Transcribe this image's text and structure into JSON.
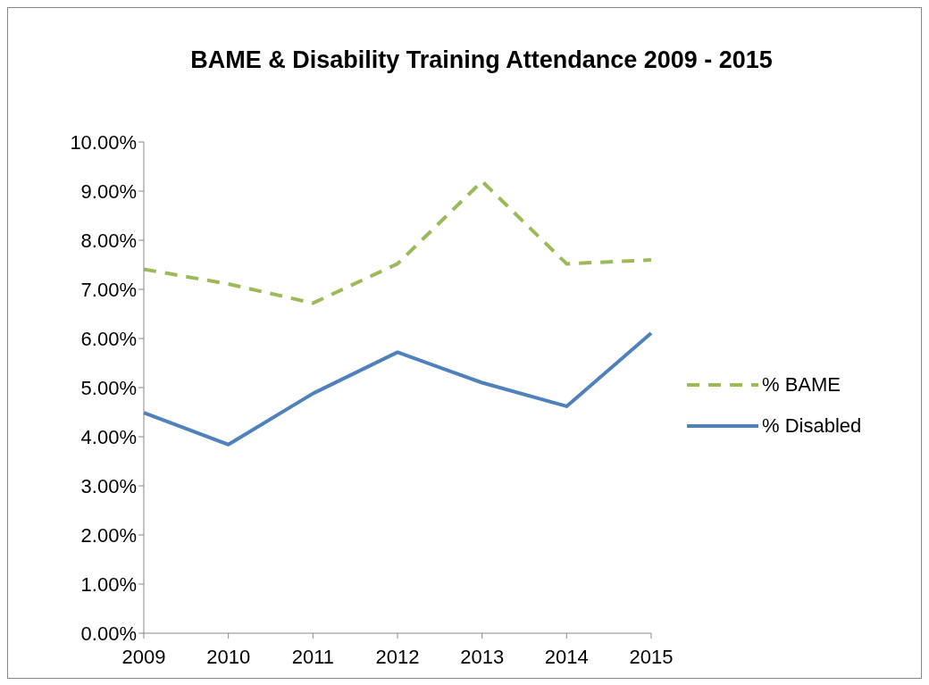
{
  "chart_data": {
    "type": "line",
    "title": "BAME & Disability Training Attendance 2009 - 2015",
    "categories": [
      "2009",
      "2010",
      "2011",
      "2012",
      "2013",
      "2014",
      "2015"
    ],
    "series": [
      {
        "name": "% BAME",
        "color": "#9bbb59",
        "line_style": "dashed",
        "values": [
          7.41,
          7.11,
          6.72,
          7.52,
          9.2,
          7.52,
          7.6
        ]
      },
      {
        "name": "% Disabled",
        "color": "#4f81bd",
        "line_style": "solid",
        "values": [
          4.49,
          3.84,
          4.88,
          5.72,
          5.1,
          4.62,
          6.11
        ]
      }
    ],
    "ylim": [
      0,
      10
    ],
    "yticks": [
      {
        "value": 0,
        "label": "0.00%"
      },
      {
        "value": 1,
        "label": "1.00%"
      },
      {
        "value": 2,
        "label": "2.00%"
      },
      {
        "value": 3,
        "label": "3.00%"
      },
      {
        "value": 4,
        "label": "4.00%"
      },
      {
        "value": 5,
        "label": "5.00%"
      },
      {
        "value": 6,
        "label": "6.00%"
      },
      {
        "value": 7,
        "label": "7.00%"
      },
      {
        "value": 8,
        "label": "8.00%"
      },
      {
        "value": 9,
        "label": "9.00%"
      },
      {
        "value": 10,
        "label": "10.00%"
      }
    ],
    "grid": false,
    "legend": "right",
    "marker": "none"
  }
}
